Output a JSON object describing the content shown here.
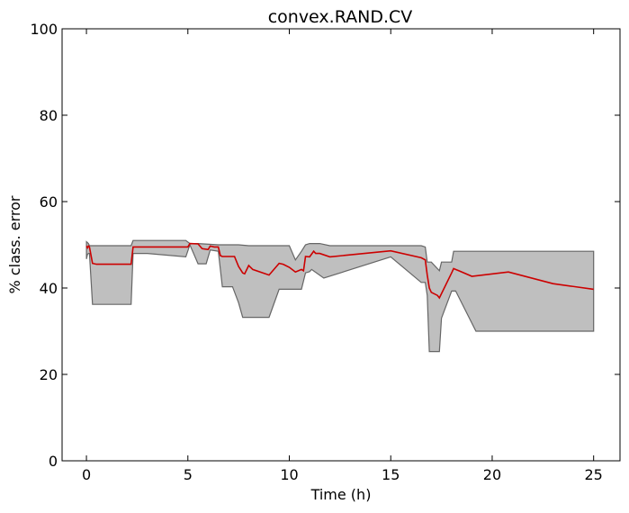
{
  "chart_data": {
    "type": "area",
    "title": "convex.RAND.CV",
    "xlabel": "Time (h)",
    "ylabel": "% class. error",
    "xlim": [
      -1.2,
      26.3
    ],
    "ylim": [
      0,
      100
    ],
    "xticks": [
      0,
      5,
      10,
      15,
      20,
      25
    ],
    "yticks": [
      0,
      20,
      40,
      60,
      80,
      100
    ],
    "grid": false,
    "colors": {
      "band_fill": "#bfbfbf",
      "band_edge": "#666666",
      "line": "#cc0000"
    },
    "series": [
      {
        "role": "mean",
        "x": [
          0.0,
          0.05,
          0.1,
          0.15,
          0.3,
          0.5,
          1.0,
          2.0,
          2.2,
          2.3,
          3.0,
          4.0,
          5.0,
          5.1,
          5.5,
          5.7,
          6.0,
          6.1,
          6.3,
          6.5,
          6.6,
          6.7,
          7.0,
          7.3,
          7.5,
          7.7,
          7.8,
          8.0,
          8.2,
          9.0,
          9.5,
          9.7,
          10.0,
          10.3,
          10.6,
          10.7,
          10.8,
          11.0,
          11.2,
          11.3,
          11.5,
          12.0,
          15.0,
          16.5,
          16.7,
          16.8,
          16.9,
          17.0,
          17.3,
          17.4,
          18.0,
          18.1,
          19.0,
          20.8,
          23.0,
          25.0
        ],
        "y": [
          49.7,
          49.3,
          49.7,
          49.5,
          45.7,
          45.5,
          45.5,
          45.5,
          45.5,
          49.5,
          49.5,
          49.5,
          49.5,
          50.3,
          50.2,
          49.1,
          48.9,
          49.7,
          49.5,
          49.5,
          47.5,
          47.3,
          47.3,
          47.3,
          45.0,
          43.5,
          43.3,
          45.2,
          44.3,
          43.0,
          45.7,
          45.5,
          44.8,
          43.7,
          44.3,
          44.0,
          47.3,
          47.2,
          48.5,
          48.0,
          48.0,
          47.2,
          48.6,
          47.0,
          46.5,
          43.0,
          40.0,
          39.0,
          38.3,
          37.7,
          43.5,
          44.5,
          42.7,
          43.7,
          41.0,
          39.7
        ]
      },
      {
        "role": "upper",
        "x": [
          0.0,
          0.05,
          0.1,
          0.15,
          0.3,
          2.2,
          2.3,
          4.9,
          5.1,
          5.5,
          6.5,
          7.0,
          7.5,
          8.0,
          10.0,
          10.3,
          10.6,
          10.8,
          11.0,
          11.5,
          12.0,
          15.0,
          16.5,
          16.7,
          16.8,
          17.0,
          17.4,
          17.5,
          18.0,
          18.1,
          25.0
        ],
        "y": [
          50.7,
          50.5,
          50.3,
          49.8,
          49.8,
          49.8,
          51.0,
          51.0,
          50.3,
          50.3,
          50.0,
          50.0,
          50.0,
          49.8,
          49.8,
          46.5,
          48.5,
          50.0,
          50.3,
          50.3,
          49.8,
          49.8,
          49.8,
          49.5,
          46.0,
          46.0,
          44.0,
          46.0,
          46.0,
          48.5,
          48.5
        ]
      },
      {
        "role": "lower",
        "x": [
          0.0,
          0.05,
          0.1,
          0.15,
          0.3,
          1.0,
          2.2,
          2.3,
          3.0,
          4.9,
          5.1,
          5.5,
          5.9,
          6.1,
          6.5,
          6.7,
          7.2,
          7.5,
          7.7,
          9.0,
          9.5,
          10.0,
          10.6,
          10.8,
          11.0,
          11.1,
          11.7,
          15.0,
          16.5,
          16.7,
          16.8,
          16.9,
          17.4,
          17.5,
          18.0,
          18.2,
          19.2,
          25.0
        ],
        "y": [
          46.7,
          47.8,
          48.0,
          48.0,
          36.2,
          36.2,
          36.2,
          48.0,
          48.0,
          47.2,
          50.0,
          45.6,
          45.6,
          48.8,
          48.5,
          40.3,
          40.3,
          36.6,
          33.2,
          33.2,
          39.7,
          39.7,
          39.7,
          43.5,
          43.8,
          44.3,
          42.3,
          47.2,
          41.3,
          41.3,
          38.3,
          25.3,
          25.3,
          33.0,
          39.3,
          39.3,
          30.0,
          30.0
        ]
      }
    ]
  }
}
